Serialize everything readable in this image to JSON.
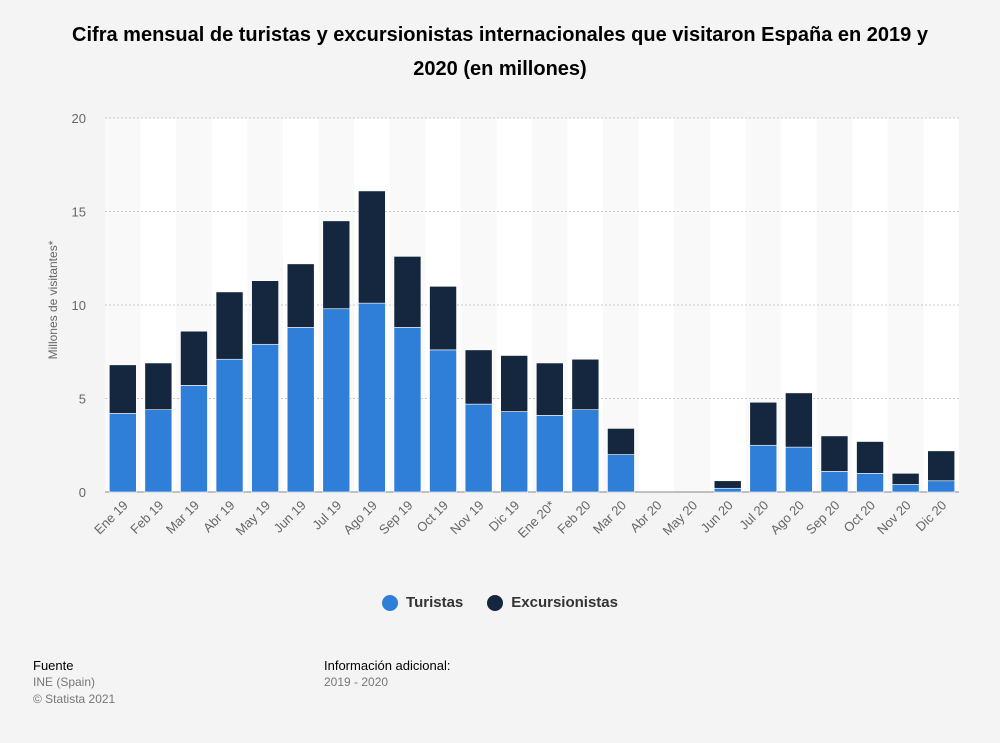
{
  "chart_data": {
    "type": "bar",
    "stacked": true,
    "title": "Cifra mensual de turistas y excursionistas internacionales que visitaron España en 2019 y 2020 (en millones)",
    "ylabel": "Millones de visitantes*",
    "ylim": [
      0,
      20
    ],
    "yticks": [
      "0",
      "5",
      "10",
      "15",
      "20"
    ],
    "grid": true,
    "legend_position": "bottom",
    "categories": [
      "Ene 19",
      "Feb 19",
      "Mar 19",
      "Abr 19",
      "May 19",
      "Jun 19",
      "Jul 19",
      "Ago 19",
      "Sep 19",
      "Oct 19",
      "Nov 19",
      "Dic 19",
      "Ene 20*",
      "Feb 20",
      "Mar 20",
      "Abr 20",
      "May 20",
      "Jun 20",
      "Jul 20",
      "Ago 20",
      "Sep 20",
      "Oct 20",
      "Nov 20",
      "Dic 20"
    ],
    "series": [
      {
        "name": "Turistas",
        "color": "#2f7ed8",
        "values": [
          4.2,
          4.4,
          5.7,
          7.1,
          7.9,
          8.8,
          9.8,
          10.1,
          8.8,
          7.6,
          4.7,
          4.3,
          4.1,
          4.4,
          2.0,
          0,
          0,
          0.2,
          2.5,
          2.4,
          1.1,
          1.0,
          0.4,
          0.6
        ]
      },
      {
        "name": "Excursionistas",
        "color": "#14273e",
        "values": [
          2.6,
          2.5,
          2.9,
          3.6,
          3.4,
          3.4,
          4.7,
          6.0,
          3.8,
          3.4,
          2.9,
          3.0,
          2.8,
          2.7,
          1.4,
          0,
          0,
          0.4,
          2.3,
          2.9,
          1.9,
          1.7,
          0.6,
          1.6
        ]
      }
    ]
  },
  "footer": {
    "source_heading": "Fuente",
    "source_lines": [
      "INE (Spain)",
      "© Statista 2021"
    ],
    "info_heading": "Información adicional:",
    "info_text": "2019 - 2020"
  }
}
